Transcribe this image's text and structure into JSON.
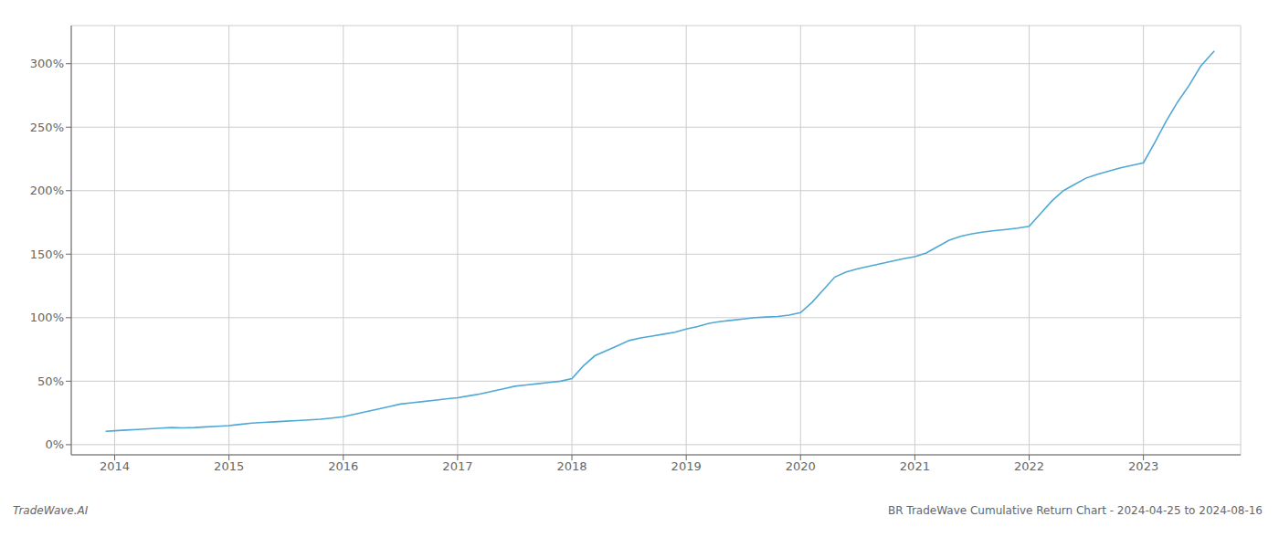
{
  "chart_data": {
    "type": "line",
    "title": "BR TradeWave Cumulative Return Chart - 2024-04-25 to 2024-08-16",
    "annotations": [
      "TradeWave.AI"
    ],
    "color": "#4fa8d5",
    "grid": true,
    "xlim": [
      2013.62,
      2023.85
    ],
    "xticks": [
      2014,
      2015,
      2016,
      2017,
      2018,
      2019,
      2020,
      2021,
      2022,
      2023
    ],
    "ylim": [
      -8,
      330
    ],
    "yticks": [
      {
        "value": 0,
        "label": "0%"
      },
      {
        "value": 50,
        "label": "50%"
      },
      {
        "value": 100,
        "label": "100%"
      },
      {
        "value": 150,
        "label": "150%"
      },
      {
        "value": 200,
        "label": "200%"
      },
      {
        "value": 250,
        "label": "250%"
      },
      {
        "value": 300,
        "label": "300%"
      }
    ],
    "x": [
      2013.92,
      2014.0,
      2014.1,
      2014.2,
      2014.3,
      2014.4,
      2014.5,
      2014.6,
      2014.7,
      2014.8,
      2014.9,
      2015.0,
      2015.1,
      2015.2,
      2015.3,
      2015.4,
      2015.5,
      2015.6,
      2015.7,
      2015.8,
      2015.9,
      2016.0,
      2016.1,
      2016.2,
      2016.3,
      2016.4,
      2016.5,
      2016.6,
      2016.7,
      2016.8,
      2016.9,
      2017.0,
      2017.1,
      2017.2,
      2017.3,
      2017.4,
      2017.5,
      2017.6,
      2017.7,
      2017.8,
      2017.9,
      2018.0,
      2018.1,
      2018.2,
      2018.3,
      2018.4,
      2018.5,
      2018.6,
      2018.7,
      2018.8,
      2018.9,
      2019.0,
      2019.1,
      2019.2,
      2019.3,
      2019.4,
      2019.5,
      2019.6,
      2019.7,
      2019.8,
      2019.9,
      2020.0,
      2020.1,
      2020.2,
      2020.3,
      2020.4,
      2020.5,
      2020.6,
      2020.7,
      2020.8,
      2020.9,
      2021.0,
      2021.1,
      2021.2,
      2021.3,
      2021.4,
      2021.5,
      2021.6,
      2021.7,
      2021.8,
      2021.9,
      2022.0,
      2022.1,
      2022.2,
      2022.3,
      2022.4,
      2022.5,
      2022.6,
      2022.7,
      2022.8,
      2022.9,
      2023.0,
      2023.1,
      2023.2,
      2023.3,
      2023.4,
      2023.5,
      2023.62
    ],
    "values": [
      10.5,
      11.0,
      11.5,
      12.0,
      12.5,
      13.0,
      13.5,
      13.2,
      13.5,
      14.0,
      14.5,
      15.0,
      16.0,
      17.0,
      17.5,
      18.0,
      18.5,
      19.0,
      19.5,
      20.0,
      21.0,
      22.0,
      24.0,
      26.0,
      28.0,
      30.0,
      32.0,
      33.0,
      34.0,
      35.0,
      36.0,
      37.0,
      38.5,
      40.0,
      42.0,
      44.0,
      46.0,
      47.0,
      48.0,
      49.0,
      50.0,
      52.0,
      62.0,
      70.0,
      74.0,
      78.0,
      82.0,
      84.0,
      85.5,
      87.0,
      88.5,
      91.0,
      93.0,
      95.5,
      97.0,
      98.0,
      99.0,
      100.0,
      100.5,
      101.0,
      102.0,
      104.0,
      112.0,
      122.0,
      132.0,
      136.0,
      138.5,
      140.5,
      142.5,
      144.5,
      146.5,
      148.0,
      151.0,
      156.0,
      161.0,
      164.0,
      166.0,
      167.5,
      168.5,
      169.5,
      170.5,
      172.0,
      182.0,
      192.0,
      200.0,
      205.0,
      210.0,
      213.0,
      215.5,
      218.0,
      220.0,
      222.0,
      238.0,
      255.0,
      270.0,
      283.0,
      298.0,
      310.0
    ]
  }
}
